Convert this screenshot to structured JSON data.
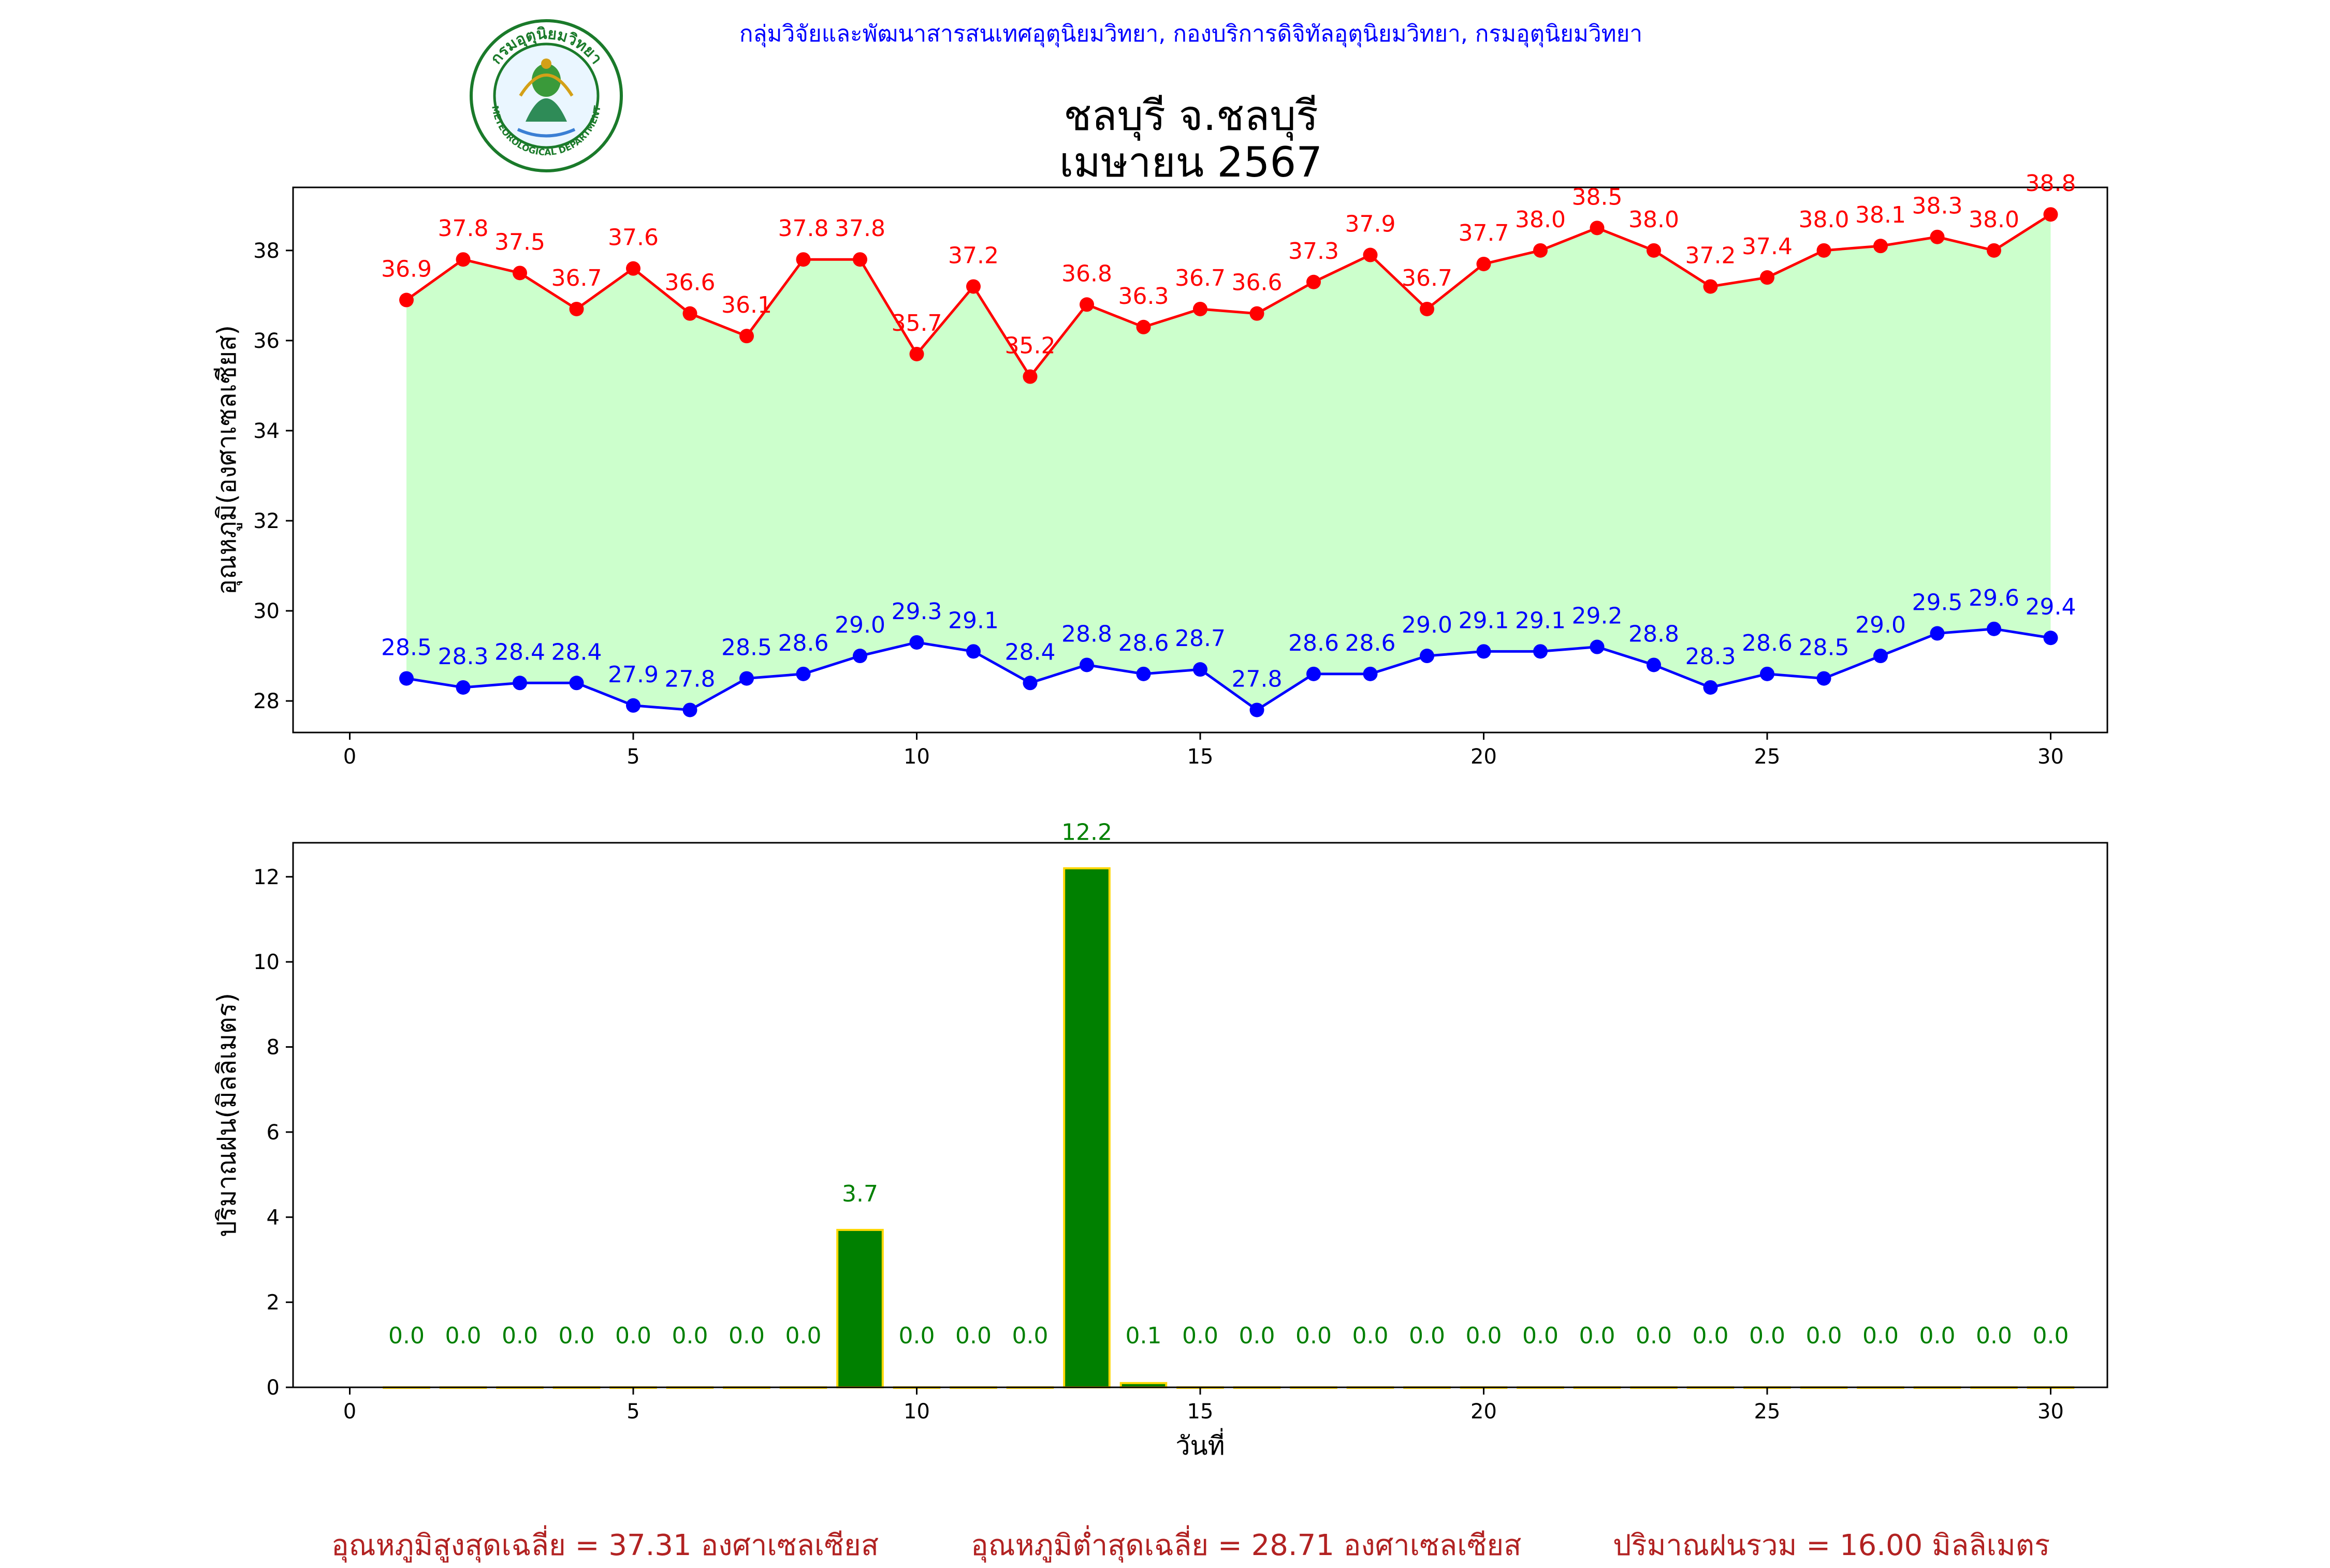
{
  "header": {
    "agency": "กลุ่มวิจัยและพัฒนาสารสนเทศอุตุนิยมวิทยา, กองบริการดิจิทัลอุตุนิยมวิทยา, กรมอุตุนิยมวิทยา",
    "title_line1": "ชลบุรี จ.ชลบุรี",
    "title_line2": "เมษายน 2567",
    "logo_text_top": "กรมอุตุนิยมวิทยา",
    "logo_text_bottom": "METEOROLOGICAL DEPARTMENT"
  },
  "colors": {
    "max_temp": "#ff0000",
    "min_temp": "#0000ff",
    "fill": "#ccffcc",
    "rain_bar": "#008000",
    "rain_edge": "#ffd700",
    "rain_label": "#008000",
    "footer": "#b22222",
    "header": "#0000ff"
  },
  "chart_data": [
    {
      "type": "line",
      "ylabel": "อุณหภูมิ(องศาเซลเซียส)",
      "xlabel": "",
      "xlim": [
        -1,
        31
      ],
      "ylim": [
        27.3,
        39.4
      ],
      "xticks": [
        0,
        5,
        10,
        15,
        20,
        25,
        30
      ],
      "yticks": [
        28,
        30,
        32,
        34,
        36,
        38
      ],
      "fill_between": true,
      "days": [
        1,
        2,
        3,
        4,
        5,
        6,
        7,
        8,
        9,
        10,
        11,
        12,
        13,
        14,
        15,
        16,
        17,
        18,
        19,
        20,
        21,
        22,
        23,
        24,
        25,
        26,
        27,
        28,
        29,
        30
      ],
      "series": [
        {
          "key": "max",
          "values": [
            36.9,
            37.8,
            37.5,
            36.7,
            37.6,
            36.6,
            36.1,
            37.8,
            37.8,
            35.7,
            37.2,
            35.2,
            36.8,
            36.3,
            36.7,
            36.6,
            37.3,
            37.9,
            36.7,
            37.7,
            38.0,
            38.5,
            38.0,
            37.2,
            37.4,
            38.0,
            38.1,
            38.3,
            38.0,
            38.8
          ]
        },
        {
          "key": "min",
          "values": [
            28.5,
            28.3,
            28.4,
            28.4,
            27.9,
            27.8,
            28.5,
            28.6,
            29.0,
            29.3,
            29.1,
            28.4,
            28.8,
            28.6,
            28.7,
            27.8,
            28.6,
            28.6,
            29.0,
            29.1,
            29.1,
            29.2,
            28.8,
            28.3,
            28.6,
            28.5,
            29.0,
            29.5,
            29.6,
            29.4
          ]
        }
      ]
    },
    {
      "type": "bar",
      "ylabel": "ปริมาณฝน(มิลลิเมตร)",
      "xlabel": "วันที่",
      "xlim": [
        -1,
        31
      ],
      "ylim": [
        0,
        12.8
      ],
      "xticks": [
        0,
        5,
        10,
        15,
        20,
        25,
        30
      ],
      "yticks": [
        0,
        2,
        4,
        6,
        8,
        10,
        12
      ],
      "days": [
        1,
        2,
        3,
        4,
        5,
        6,
        7,
        8,
        9,
        10,
        11,
        12,
        13,
        14,
        15,
        16,
        17,
        18,
        19,
        20,
        21,
        22,
        23,
        24,
        25,
        26,
        27,
        28,
        29,
        30
      ],
      "values": [
        0.0,
        0.0,
        0.0,
        0.0,
        0.0,
        0.0,
        0.0,
        0.0,
        3.7,
        0.0,
        0.0,
        0.0,
        12.2,
        0.1,
        0.0,
        0.0,
        0.0,
        0.0,
        0.0,
        0.0,
        0.0,
        0.0,
        0.0,
        0.0,
        0.0,
        0.0,
        0.0,
        0.0,
        0.0,
        0.0
      ]
    }
  ],
  "footer": {
    "avg_max": "อุณหภูมิสูงสุดเฉลี่ย = 37.31 องศาเซลเซียส",
    "avg_min": "อุณหภูมิต่ำสุดเฉลี่ย = 28.71 องศาเซลเซียส",
    "total_rain": "ปริมาณฝนรวม = 16.00 มิลลิเมตร"
  }
}
